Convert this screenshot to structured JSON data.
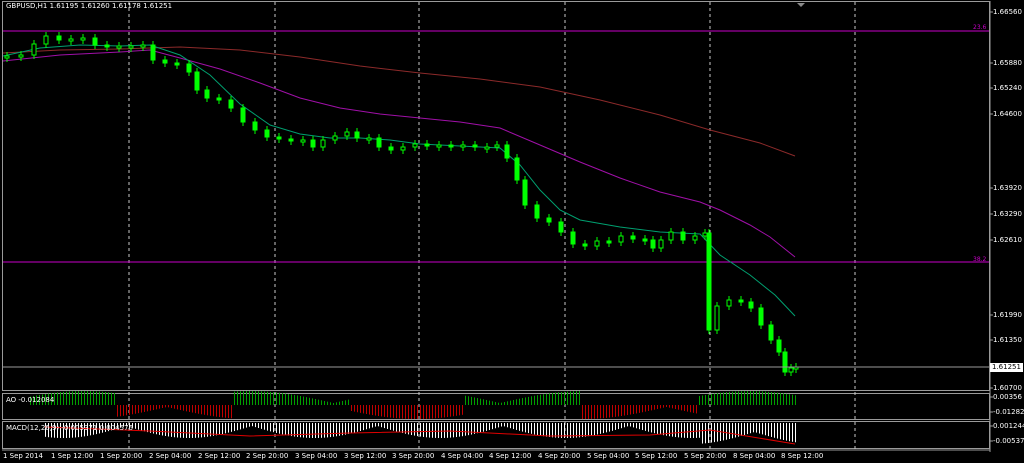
{
  "window": {
    "symbol_timeframe": "GBPUSD,H1",
    "ohlc": "1.61195 1.61260 1.61178 1.61251"
  },
  "current_price": "1.61251",
  "price_axis": [
    "1.66560",
    "1.65880",
    "1.65240",
    "1.64600",
    "1.63920",
    "1.63290",
    "1.62610",
    "1.61990",
    "1.61350",
    "1.60700"
  ],
  "time_axis": [
    "1 Sep 2014",
    "1 Sep 12:00",
    "1 Sep 20:00",
    "2 Sep 04:00",
    "2 Sep 12:00",
    "2 Sep 20:00",
    "3 Sep 04:00",
    "3 Sep 12:00",
    "3 Sep 20:00",
    "4 Sep 04:00",
    "4 Sep 12:00",
    "4 Sep 20:00",
    "5 Sep 04:00",
    "5 Sep 12:00",
    "5 Sep 20:00",
    "8 Sep 04:00",
    "8 Sep 12:00"
  ],
  "fibo_levels": [
    {
      "label": "23.6"
    },
    {
      "label": "38.2"
    }
  ],
  "indicators": {
    "ao": {
      "label": "AO -0.012084",
      "axis": [
        "0.00356",
        "-0.01282"
      ]
    },
    "macd": {
      "label": "MACD(12,26,9) -0.005371 0.004576",
      "axis": [
        "0.001244",
        "-0.005371"
      ]
    }
  },
  "colors": {
    "background": "#000000",
    "grid": "#c8c8c8",
    "candle": "#00ff00",
    "fibo": "#c800c8",
    "ma_fast": "#00a070",
    "ma_mid": "#a010a8",
    "ma_slow": "#8c2a2a"
  }
}
